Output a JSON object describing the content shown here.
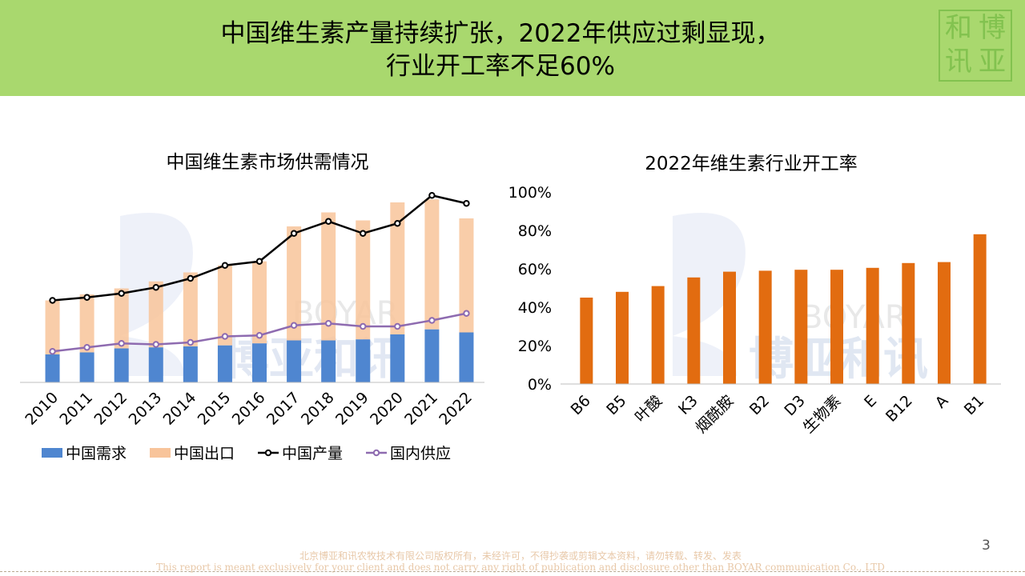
{
  "header": {
    "title_line1": "中国维生素产量持续扩张，2022年供应过剩显现，",
    "title_line2": "行业开工率不足60%",
    "seal_chars": [
      "和",
      "博",
      "讯",
      "亚"
    ]
  },
  "watermark": {
    "cn": "博亚和讯",
    "en": "BOYAR"
  },
  "colors": {
    "banner": "#a9d86e",
    "demand": "#4f86d0",
    "export": "#f8c49a",
    "production": "#000000",
    "domestic": "#8e6bb0",
    "utilization": "#e26c10"
  },
  "chart_data": [
    {
      "type": "bar",
      "title": "中国维生素市场供需情况",
      "categories": [
        "2010",
        "2011",
        "2012",
        "2013",
        "2014",
        "2015",
        "2016",
        "2017",
        "2018",
        "2019",
        "2020",
        "2021",
        "2022"
      ],
      "series": [
        {
          "name": "中国需求",
          "kind": "stacked-bar",
          "values": [
            14,
            15,
            17,
            17.5,
            18,
            18.5,
            19.5,
            21,
            21,
            21.5,
            24,
            26.5,
            25
          ]
        },
        {
          "name": "中国出口",
          "kind": "stacked-bar",
          "values": [
            27,
            29,
            30,
            33,
            37,
            40,
            41,
            57,
            64,
            59.5,
            66,
            65,
            57
          ]
        },
        {
          "name": "中国产量",
          "kind": "line",
          "values": [
            41,
            42.5,
            44.5,
            47.5,
            52,
            58.5,
            60.5,
            74.5,
            80.5,
            74.5,
            79.5,
            93.5,
            89.5
          ]
        },
        {
          "name": "国内供应",
          "kind": "line",
          "values": [
            15.5,
            17.5,
            19.5,
            19,
            20,
            23,
            23.5,
            28.5,
            29.5,
            28,
            28,
            31,
            34.5
          ]
        }
      ],
      "ylim": [
        0,
        100
      ],
      "legend": "bottom"
    },
    {
      "type": "bar",
      "title": "2022年维生素行业开工率",
      "categories": [
        "B6",
        "B5",
        "叶酸",
        "K3",
        "烟酰胺",
        "B2",
        "D3",
        "生物素",
        "E",
        "B12",
        "A",
        "B1"
      ],
      "values": [
        0.45,
        0.48,
        0.51,
        0.555,
        0.585,
        0.59,
        0.595,
        0.595,
        0.605,
        0.63,
        0.635,
        0.78
      ],
      "ylim": [
        0,
        1
      ],
      "yticks": [
        "0%",
        "20%",
        "40%",
        "60%",
        "80%",
        "100%"
      ]
    }
  ],
  "footer": {
    "page_number": "3",
    "copyright_cn": "北京博亚和讯农牧技术有限公司版权所有，未经许可，不得抄袭或剪辑文本资料，请勿转载、转发、发表",
    "copyright_en": "This report is meant exclusively for your client and does not carry any right of publication and disclosure other than BOYAR communication Co., LTD"
  }
}
